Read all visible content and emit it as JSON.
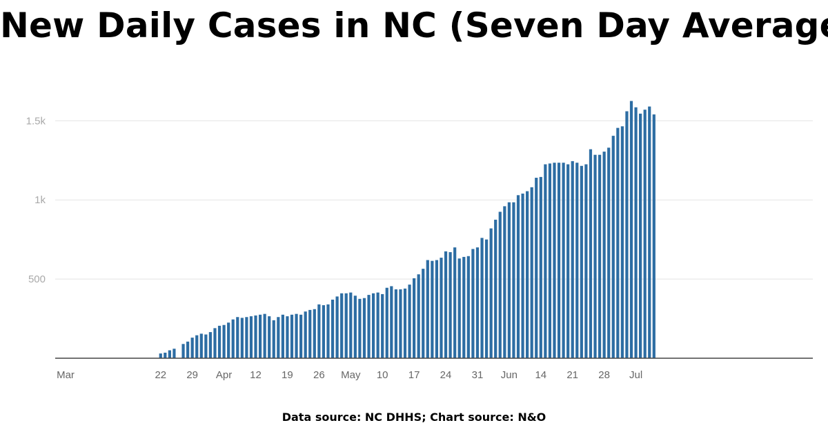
{
  "header": {
    "title": "New Daily Cases in NC (Seven Day Average)"
  },
  "footer": {
    "source": "Data source: NC DHHS; Chart source: N&O"
  },
  "colors": {
    "bar": "#2d6da3",
    "grid": "#e3e3e3",
    "axis": "#444444"
  },
  "chart_data": {
    "type": "bar",
    "title": "New Daily Cases in NC (Seven Day Average)",
    "xlabel": "",
    "ylabel": "",
    "grid": true,
    "ylim": [
      0,
      1750
    ],
    "y_ticks": [
      {
        "value": 500,
        "label": "500"
      },
      {
        "value": 1000,
        "label": "1k"
      },
      {
        "value": 1500,
        "label": "1.5k"
      }
    ],
    "categories": [
      "Mar 1",
      "Mar 2",
      "Mar 3",
      "Mar 4",
      "Mar 5",
      "Mar 6",
      "Mar 7",
      "Mar 8",
      "Mar 9",
      "Mar 10",
      "Mar 11",
      "Mar 12",
      "Mar 13",
      "Mar 14",
      "Mar 15",
      "Mar 16",
      "Mar 17",
      "Mar 18",
      "Mar 19",
      "Mar 20",
      "Mar 21",
      "Mar 22",
      "Mar 23",
      "Mar 24",
      "Mar 25",
      "Mar 26",
      "Mar 27",
      "Mar 28",
      "Mar 29",
      "Mar 30",
      "Mar 31",
      "Apr 1",
      "Apr 2",
      "Apr 3",
      "Apr 4",
      "Apr 5",
      "Apr 6",
      "Apr 7",
      "Apr 8",
      "Apr 9",
      "Apr 10",
      "Apr 11",
      "Apr 12",
      "Apr 13",
      "Apr 14",
      "Apr 15",
      "Apr 16",
      "Apr 17",
      "Apr 18",
      "Apr 19",
      "Apr 20",
      "Apr 21",
      "Apr 22",
      "Apr 23",
      "Apr 24",
      "Apr 25",
      "Apr 26",
      "Apr 27",
      "Apr 28",
      "Apr 29",
      "Apr 30",
      "May 1",
      "May 2",
      "May 3",
      "May 4",
      "May 5",
      "May 6",
      "May 7",
      "May 8",
      "May 9",
      "May 10",
      "May 11",
      "May 12",
      "May 13",
      "May 14",
      "May 15",
      "May 16",
      "May 17",
      "May 18",
      "May 19",
      "May 20",
      "May 21",
      "May 22",
      "May 23",
      "May 24",
      "May 25",
      "May 26",
      "May 27",
      "May 28",
      "May 29",
      "May 30",
      "May 31",
      "Jun 1",
      "Jun 2",
      "Jun 3",
      "Jun 4",
      "Jun 5",
      "Jun 6",
      "Jun 7",
      "Jun 8",
      "Jun 9",
      "Jun 10",
      "Jun 11",
      "Jun 12",
      "Jun 13",
      "Jun 14",
      "Jun 15",
      "Jun 16",
      "Jun 17",
      "Jun 18",
      "Jun 19",
      "Jun 20",
      "Jun 21",
      "Jun 22",
      "Jun 23",
      "Jun 24",
      "Jun 25",
      "Jun 26",
      "Jun 27",
      "Jun 28",
      "Jun 29",
      "Jun 30",
      "Jul 1",
      "Jul 2",
      "Jul 3",
      "Jul 4",
      "Jul 5",
      "Jul 6",
      "Jul 7",
      "Jul 8",
      "Jul 9",
      "Jul 10",
      "Jul 11",
      "Jul 12",
      "Jul 13",
      "Jul 14",
      "Jul 15",
      "Jul 16",
      "Jul 17",
      "Jul 18"
    ],
    "x_ticks": [
      {
        "category": "Mar 1",
        "label": "Mar"
      },
      {
        "category": "Mar 22",
        "label": "22"
      },
      {
        "category": "Mar 29",
        "label": "29"
      },
      {
        "category": "Apr 5",
        "label": "Apr"
      },
      {
        "category": "Apr 12",
        "label": "12"
      },
      {
        "category": "Apr 19",
        "label": "19"
      },
      {
        "category": "Apr 26",
        "label": "26"
      },
      {
        "category": "May 3",
        "label": "May"
      },
      {
        "category": "May 10",
        "label": "10"
      },
      {
        "category": "May 17",
        "label": "17"
      },
      {
        "category": "May 24",
        "label": "24"
      },
      {
        "category": "May 31",
        "label": "31"
      },
      {
        "category": "Jun 7",
        "label": "Jun"
      },
      {
        "category": "Jun 14",
        "label": "14"
      },
      {
        "category": "Jun 21",
        "label": "21"
      },
      {
        "category": "Jun 28",
        "label": "28"
      },
      {
        "category": "Jul 5",
        "label": "Jul"
      }
    ],
    "values": [
      0,
      0,
      0,
      0,
      0,
      0,
      0,
      0,
      0,
      0,
      0,
      0,
      0,
      0,
      0,
      0,
      0,
      0,
      0,
      0,
      0,
      0,
      0,
      0,
      0,
      0,
      0,
      0,
      0,
      0,
      0,
      0,
      0,
      0,
      0,
      0,
      0,
      0,
      0,
      0,
      0,
      0,
      0,
      0,
      0,
      0,
      0,
      0,
      0,
      0,
      0,
      0,
      0,
      0,
      0,
      0,
      0,
      0,
      0,
      0,
      0,
      0,
      0,
      0,
      0,
      0,
      0,
      0,
      0,
      0,
      0,
      0,
      0,
      0,
      0,
      0,
      0,
      0,
      0,
      0,
      0,
      0,
      0,
      0,
      0,
      0,
      0,
      0,
      0,
      0,
      0,
      0,
      0,
      0,
      0,
      0,
      0,
      0,
      0,
      0,
      0,
      0,
      0,
      0,
      0,
      0,
      0,
      0,
      0,
      0,
      0,
      0,
      0,
      0,
      0,
      0,
      0,
      0,
      0,
      0,
      0,
      0,
      0,
      0,
      0,
      0,
      0,
      0,
      0,
      0,
      0,
      0,
      0,
      0,
      0,
      0,
      0,
      0,
      0,
      0
    ]
  }
}
